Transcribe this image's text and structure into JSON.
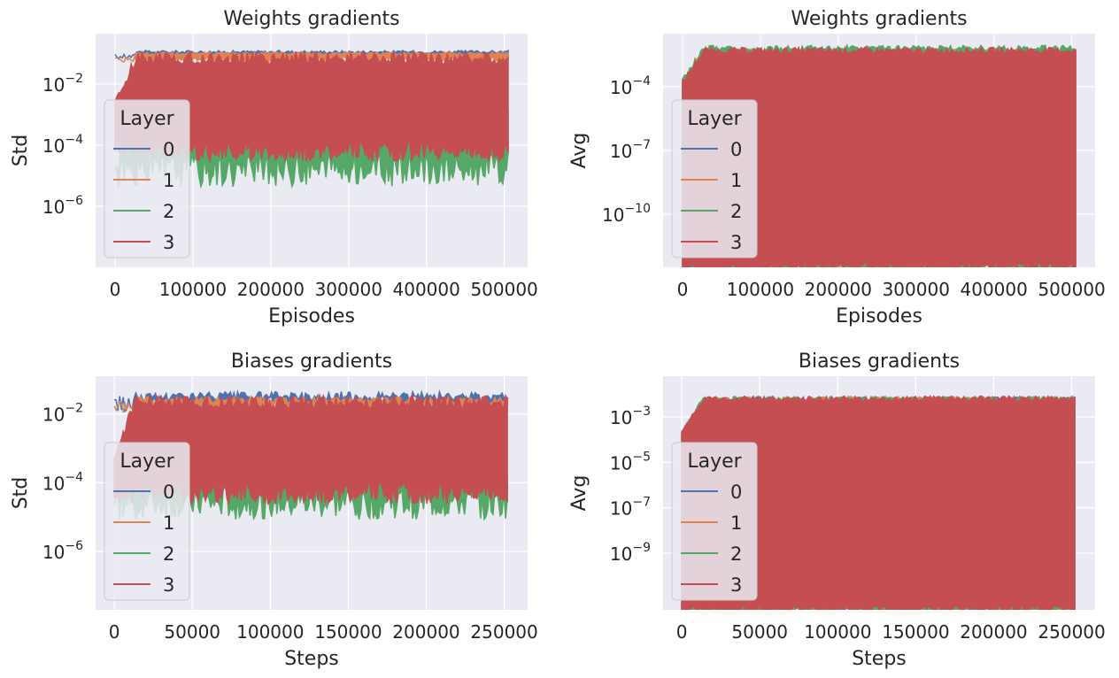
{
  "chart_data": [
    {
      "type": "line",
      "title": "Weights gradients",
      "xlabel": "Episodes",
      "ylabel": "Std",
      "yscale": "log",
      "xlim": [
        -25000,
        530000
      ],
      "ylim_exp": [
        -8.0,
        -0.35
      ],
      "xticks": [
        0,
        100000,
        200000,
        300000,
        400000,
        500000
      ],
      "yticks_exp": [
        -6,
        -4,
        -2
      ],
      "grid": true,
      "legend": {
        "title": "Layer",
        "placement": "center-left"
      },
      "series": [
        {
          "name": "0",
          "color": "#4c72b0",
          "x_range": [
            0,
            505000
          ],
          "upper_exp": -0.95,
          "lower_exp": -1.1,
          "noise": 0.05
        },
        {
          "name": "1",
          "color": "#dd8452",
          "x_range": [
            0,
            505000
          ],
          "upper_exp": -1.0,
          "lower_exp": -1.2,
          "noise": 0.05
        },
        {
          "name": "2",
          "color": "#55a868",
          "x_range": [
            0,
            505000
          ],
          "upper_exp": -3.2,
          "lower_exp": -4.8,
          "noise": 0.35
        },
        {
          "name": "3",
          "color": "#c44e52",
          "x_range": [
            0,
            505000
          ],
          "upper_exp": -1.15,
          "lower_exp": -4.2,
          "noise": 0.2
        }
      ]
    },
    {
      "type": "line",
      "title": "Weights gradients",
      "xlabel": "Episodes",
      "ylabel": "Avg",
      "yscale": "log",
      "xlim": [
        -25000,
        530000
      ],
      "ylim_exp": [
        -12.5,
        -1.5
      ],
      "xticks": [
        0,
        100000,
        200000,
        300000,
        400000,
        500000
      ],
      "yticks_exp": [
        -10,
        -7,
        -4
      ],
      "grid": true,
      "legend": {
        "title": "Layer",
        "placement": "center-left"
      },
      "series": [
        {
          "name": "0",
          "color": "#4c72b0",
          "x_range": [
            0,
            505000
          ],
          "upper_exp": -2.3,
          "lower_exp": -12.5,
          "noise": 0.1
        },
        {
          "name": "1",
          "color": "#dd8452",
          "x_range": [
            0,
            505000
          ],
          "upper_exp": -2.3,
          "lower_exp": -12.5,
          "noise": 0.1
        },
        {
          "name": "2",
          "color": "#55a868",
          "x_range": [
            0,
            505000
          ],
          "upper_exp": -2.2,
          "lower_exp": -12.5,
          "noise": 0.15
        },
        {
          "name": "3",
          "color": "#c44e52",
          "x_range": [
            0,
            505000
          ],
          "upper_exp": -2.3,
          "lower_exp": -12.5,
          "noise": 0.15
        }
      ]
    },
    {
      "type": "line",
      "title": "Biases gradients",
      "xlabel": "Steps",
      "ylabel": "Std",
      "yscale": "log",
      "xlim": [
        -12000,
        265000
      ],
      "ylim_exp": [
        -7.7,
        -0.9
      ],
      "xticks": [
        0,
        50000,
        100000,
        150000,
        200000,
        250000
      ],
      "yticks_exp": [
        -6,
        -4,
        -2
      ],
      "grid": true,
      "legend": {
        "title": "Layer",
        "placement": "center-left"
      },
      "series": [
        {
          "name": "0",
          "color": "#4c72b0",
          "x_range": [
            0,
            252000
          ],
          "upper_exp": -1.5,
          "lower_exp": -1.7,
          "noise": 0.15
        },
        {
          "name": "1",
          "color": "#dd8452",
          "x_range": [
            0,
            252000
          ],
          "upper_exp": -1.6,
          "lower_exp": -1.8,
          "noise": 0.1
        },
        {
          "name": "2",
          "color": "#55a868",
          "x_range": [
            0,
            252000
          ],
          "upper_exp": -3.7,
          "lower_exp": -4.6,
          "noise": 0.3
        },
        {
          "name": "3",
          "color": "#c44e52",
          "x_range": [
            0,
            252000
          ],
          "upper_exp": -1.65,
          "lower_exp": -4.3,
          "noise": 0.2
        }
      ]
    },
    {
      "type": "line",
      "title": "Biases gradients",
      "xlabel": "Steps",
      "ylabel": "Avg",
      "yscale": "log",
      "xlim": [
        -12000,
        265000
      ],
      "ylim_exp": [
        -11.5,
        -1.2
      ],
      "xticks": [
        0,
        50000,
        100000,
        150000,
        200000,
        250000
      ],
      "yticks_exp": [
        -9,
        -7,
        -5,
        -3
      ],
      "grid": true,
      "legend": {
        "title": "Layer",
        "placement": "center-left"
      },
      "series": [
        {
          "name": "0",
          "color": "#4c72b0",
          "x_range": [
            0,
            252000
          ],
          "upper_exp": -2.2,
          "lower_exp": -11.5,
          "noise": 0.1
        },
        {
          "name": "1",
          "color": "#dd8452",
          "x_range": [
            0,
            252000
          ],
          "upper_exp": -2.2,
          "lower_exp": -11.5,
          "noise": 0.1
        },
        {
          "name": "2",
          "color": "#55a868",
          "x_range": [
            0,
            252000
          ],
          "upper_exp": -2.2,
          "lower_exp": -11.5,
          "noise": 0.1
        },
        {
          "name": "3",
          "color": "#c44e52",
          "x_range": [
            0,
            252000
          ],
          "upper_exp": -2.2,
          "lower_exp": -11.5,
          "noise": 0.12
        }
      ]
    }
  ]
}
